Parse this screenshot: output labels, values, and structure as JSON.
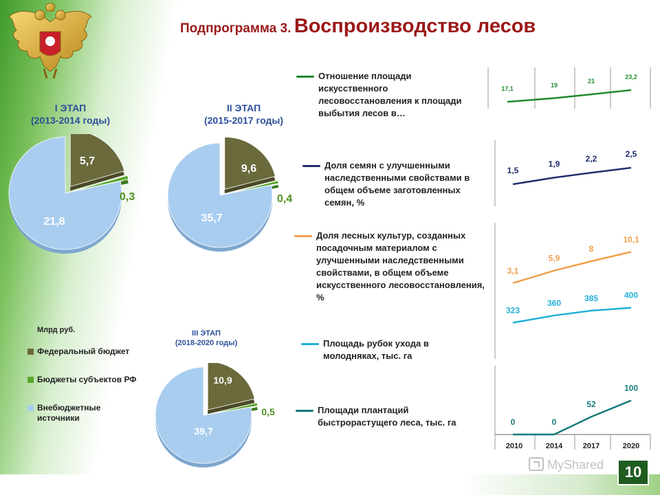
{
  "title": {
    "prefix": "Подпрограмма 3.",
    "main": "Воспроизводство лесов"
  },
  "stages": [
    {
      "label": "I ЭТАП",
      "years": "(2013-2014 годы)"
    },
    {
      "label": "II ЭТАП",
      "years": "(2015-2017 годы)"
    },
    {
      "label": "III ЭТАП",
      "years": "(2018-2020 годы)"
    }
  ],
  "legend": {
    "unit": "Млрд руб.",
    "items": [
      {
        "label": "Федеральный бюджет",
        "color": "#6b6a3c"
      },
      {
        "label": "Бюджеты субъектов РФ",
        "color": "#5aa62a"
      },
      {
        "label": "Внебюджетные источники",
        "color": "#a9cdef"
      }
    ]
  },
  "indicators": [
    {
      "label": "Отношение площади искусственного лесовосстановления к площади выбытия лесов в…",
      "color": "#1e8a2e"
    },
    {
      "label": "Доля семян с улучшенными наследственными свойствами в общем объеме заготовленных семян, %",
      "color": "#1f2d6b"
    },
    {
      "label": "Доля лесных культур, созданных посадочным материалом с улучшенными наследственными свойствами, в общем объеме искусственного лесовосстановления, %",
      "color": "#f0a04a"
    },
    {
      "label": "Площадь рубок ухода в молодняках, тыс. га",
      "color": "#1fb0d8"
    },
    {
      "label": "Площади плантаций быстрорастущего леса, тыс. га",
      "color": "#167a7a"
    }
  ],
  "chart_data": [
    {
      "type": "pie",
      "title": "I ЭТАП (2013-2014 годы)",
      "unit": "Млрд руб.",
      "categories": [
        "Федеральный бюджет",
        "Бюджеты субъектов РФ",
        "Внебюджетные источники"
      ],
      "values": [
        5.7,
        0.3,
        21.8
      ],
      "labels": [
        "5,7",
        "0,3",
        "21,8"
      ]
    },
    {
      "type": "pie",
      "title": "II ЭТАП (2015-2017 годы)",
      "unit": "Млрд руб.",
      "categories": [
        "Федеральный бюджет",
        "Бюджеты субъектов РФ",
        "Внебюджетные источники"
      ],
      "values": [
        9.6,
        0.4,
        35.7
      ],
      "labels": [
        "9,6",
        "0,4",
        "35,7"
      ]
    },
    {
      "type": "pie",
      "title": "III ЭТАП (2018-2020 годы)",
      "unit": "Млрд руб.",
      "categories": [
        "Федеральный бюджет",
        "Бюджеты субъектов РФ",
        "Внебюджетные источники"
      ],
      "values": [
        10.9,
        0.5,
        39.7
      ],
      "labels": [
        "10,9",
        "0,5",
        "39,7"
      ]
    },
    {
      "type": "line",
      "categories": [
        "2010",
        "2014",
        "2017",
        "2020"
      ],
      "series": [
        {
          "values": [
            17.1,
            19,
            21,
            23.2
          ],
          "labels": [
            "17,1",
            "19",
            "21",
            "23,2"
          ],
          "color": "#1e8a2e",
          "label_color": "#1e8a2e"
        },
        {
          "values": [
            1.5,
            1.9,
            2.2,
            2.5
          ],
          "labels": [
            "1,5",
            "1,9",
            "2,2",
            "2,5"
          ],
          "color": "#1f2d6b",
          "label_color": "#1f2d6b"
        },
        {
          "values": [
            3.1,
            5.9,
            8,
            10.1
          ],
          "labels": [
            "3,1",
            "5,9",
            "8",
            "10,1"
          ],
          "color": "#f0a04a",
          "label_color": "#f0a04a"
        },
        {
          "values": [
            323,
            360,
            385,
            400
          ],
          "labels": [
            "323",
            "360",
            "385",
            "400"
          ],
          "color": "#1fb0d8",
          "label_color": "#1fb0d8"
        },
        {
          "values": [
            0,
            0,
            52,
            100
          ],
          "labels": [
            "0",
            "0",
            "52",
            "100"
          ],
          "color": "#167a7a",
          "label_color": "#167a7a"
        }
      ]
    }
  ],
  "page_number": "10",
  "watermark": "MyShared"
}
